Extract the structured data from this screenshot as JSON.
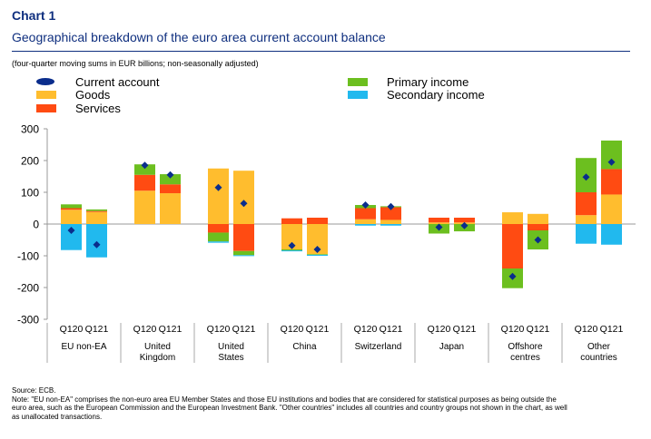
{
  "header": {
    "chart_label": "Chart 1",
    "title": "Geographical breakdown of the euro area current account balance",
    "subtitle": "(four-quarter moving sums in EUR billions; non-seasonally adjusted)"
  },
  "colors": {
    "current_account": "#0a2d8c",
    "goods": "#ffbd2e",
    "services": "#ff4b12",
    "primary_income": "#6cbf1f",
    "secondary_income": "#21b9ee",
    "brand": "#0f2f7f"
  },
  "legend": [
    {
      "key": "current_account",
      "label": "Current account",
      "shape": "dot"
    },
    {
      "key": "goods",
      "label": "Goods",
      "shape": "square"
    },
    {
      "key": "services",
      "label": "Services",
      "shape": "square"
    },
    {
      "key": "primary_income",
      "label": "Primary income",
      "shape": "square"
    },
    {
      "key": "secondary_income",
      "label": "Secondary income",
      "shape": "square"
    }
  ],
  "chart_data": {
    "type": "bar",
    "stacked": true,
    "ylim": [
      -300,
      300
    ],
    "yticks": [
      300,
      200,
      100,
      0,
      -100,
      -200,
      -300
    ],
    "grid": false,
    "legend_position": "top",
    "series_order": [
      "goods",
      "services",
      "primary_income",
      "secondary_income"
    ],
    "groups": [
      {
        "label_lines": [
          "EU non-EA"
        ],
        "bars": [
          {
            "period": "Q120",
            "goods": 45,
            "services": 5,
            "primary_income": 12,
            "secondary_income": -82,
            "current_account": -20
          },
          {
            "period": "Q121",
            "goods": 38,
            "services": 3,
            "primary_income": 5,
            "secondary_income": -105,
            "current_account": -65
          }
        ]
      },
      {
        "label_lines": [
          "United",
          "Kingdom"
        ],
        "bars": [
          {
            "period": "Q120",
            "goods": 105,
            "services": 50,
            "primary_income": 33,
            "secondary_income": 0,
            "current_account": 185
          },
          {
            "period": "Q121",
            "goods": 97,
            "services": 28,
            "primary_income": 32,
            "secondary_income": 0,
            "current_account": 155
          }
        ]
      },
      {
        "label_lines": [
          "United",
          "States"
        ],
        "bars": [
          {
            "period": "Q120",
            "goods": 175,
            "services": -27,
            "primary_income": -28,
            "secondary_income": -4,
            "current_account": 115
          },
          {
            "period": "Q121",
            "goods": 168,
            "services": -85,
            "primary_income": -13,
            "secondary_income": -3,
            "current_account": 65
          }
        ]
      },
      {
        "label_lines": [
          "China"
        ],
        "bars": [
          {
            "period": "Q120",
            "goods": -80,
            "services": 18,
            "primary_income": -3,
            "secondary_income": -3,
            "current_account": -68
          },
          {
            "period": "Q121",
            "goods": -95,
            "services": 20,
            "primary_income": -2,
            "secondary_income": -3,
            "current_account": -80
          }
        ]
      },
      {
        "label_lines": [
          "Switzerland"
        ],
        "bars": [
          {
            "period": "Q120",
            "goods": 15,
            "services": 35,
            "primary_income": 10,
            "secondary_income": -5,
            "current_account": 60
          },
          {
            "period": "Q121",
            "goods": 13,
            "services": 40,
            "primary_income": 3,
            "secondary_income": -5,
            "current_account": 55
          }
        ]
      },
      {
        "label_lines": [
          "Japan"
        ],
        "bars": [
          {
            "period": "Q120",
            "goods": 5,
            "services": 15,
            "primary_income": -30,
            "secondary_income": 0,
            "current_account": -10
          },
          {
            "period": "Q121",
            "goods": 5,
            "services": 15,
            "primary_income": -23,
            "secondary_income": 0,
            "current_account": -5
          }
        ]
      },
      {
        "label_lines": [
          "Offshore",
          "centres"
        ],
        "bars": [
          {
            "period": "Q120",
            "goods": 37,
            "services": -140,
            "primary_income": -62,
            "secondary_income": 0,
            "current_account": -165
          },
          {
            "period": "Q121",
            "goods": 32,
            "services": -20,
            "primary_income": -60,
            "secondary_income": 0,
            "current_account": -50
          }
        ]
      },
      {
        "label_lines": [
          "Other",
          "countries"
        ],
        "bars": [
          {
            "period": "Q120",
            "goods": 28,
            "services": 72,
            "primary_income": 108,
            "secondary_income": -62,
            "current_account": 148
          },
          {
            "period": "Q121",
            "goods": 93,
            "services": 80,
            "primary_income": 90,
            "secondary_income": -65,
            "current_account": 195
          }
        ]
      }
    ]
  },
  "footer": {
    "source": "Source: ECB.",
    "note_lines": [
      "Note: \"EU non-EA\" comprises the non-euro area EU Member States and those EU institutions and bodies that are considered for statistical purposes as being outside the",
      "euro area, such as the European Commission and the European Investment Bank. \"Other countries\" includes all countries and country groups not shown in the chart, as well",
      "as unallocated transactions."
    ]
  }
}
